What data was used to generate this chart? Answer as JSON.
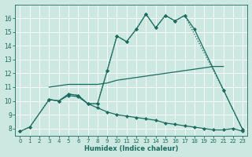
{
  "xlabel": "Humidex (Indice chaleur)",
  "background_color": "#cce8e0",
  "grid_color": "#b8d8d0",
  "line_color": "#1a6b60",
  "xlim": [
    -0.5,
    23.5
  ],
  "ylim": [
    7.5,
    17.0
  ],
  "xticks": [
    0,
    1,
    2,
    3,
    4,
    5,
    6,
    7,
    8,
    9,
    10,
    11,
    12,
    13,
    14,
    15,
    16,
    17,
    18,
    19,
    20,
    21,
    22,
    23
  ],
  "yticks": [
    8,
    9,
    10,
    11,
    12,
    13,
    14,
    15,
    16
  ],
  "line_dotted_x": [
    0,
    1,
    3,
    4,
    5,
    6,
    7,
    8,
    9,
    10,
    11,
    12,
    13,
    14,
    15,
    16,
    17,
    21,
    23
  ],
  "line_dotted_y": [
    7.8,
    8.1,
    10.1,
    10.0,
    10.5,
    10.4,
    9.8,
    9.8,
    12.2,
    14.7,
    14.3,
    15.2,
    16.3,
    15.3,
    16.2,
    15.8,
    16.2,
    10.8,
    7.9
  ],
  "line_main_x": [
    3,
    4,
    5,
    6,
    7,
    8,
    9,
    10,
    11,
    12,
    13,
    14,
    15,
    16,
    17,
    18,
    21,
    23
  ],
  "line_main_y": [
    10.1,
    10.0,
    10.5,
    10.4,
    9.8,
    9.8,
    12.2,
    14.7,
    14.3,
    15.2,
    16.3,
    15.3,
    16.2,
    15.8,
    16.2,
    15.2,
    10.8,
    7.9
  ],
  "line_upper_x": [
    3,
    4,
    5,
    6,
    7,
    8,
    9,
    10,
    11,
    12,
    13,
    14,
    15,
    16,
    17,
    18,
    19,
    20,
    21
  ],
  "line_upper_y": [
    11.0,
    11.1,
    11.2,
    11.2,
    11.2,
    11.2,
    11.3,
    11.5,
    11.6,
    11.7,
    11.8,
    11.9,
    12.0,
    12.1,
    12.2,
    12.3,
    12.4,
    12.5,
    12.5
  ],
  "line_lower_x": [
    0,
    1,
    3,
    4,
    5,
    6,
    7,
    8,
    9,
    10,
    11,
    12,
    13,
    14,
    15,
    16,
    17,
    18,
    19,
    20,
    21,
    22,
    23
  ],
  "line_lower_y": [
    7.8,
    8.1,
    10.1,
    10.0,
    10.4,
    10.3,
    9.8,
    9.5,
    9.2,
    9.0,
    8.9,
    8.8,
    8.7,
    8.6,
    8.4,
    8.3,
    8.2,
    8.1,
    8.0,
    7.9,
    7.9,
    8.0,
    7.8
  ]
}
